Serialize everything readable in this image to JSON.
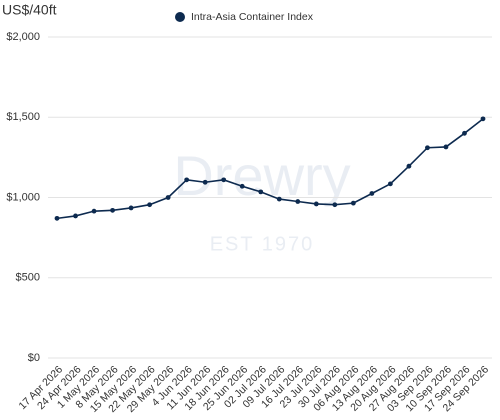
{
  "chart_data": {
    "type": "line",
    "y_axis_title": "US$/40ft",
    "watermark": "Drewry",
    "watermark_subtitle": "EST 1970",
    "categories": [
      "17 Apr 2026",
      "24 Apr 2026",
      "1 May 2026",
      "8 May 2026",
      "15 May 2026",
      "22 May 2026",
      "29 May 2026",
      "4 Jun 2026",
      "11 Jun 2026",
      "18 Jun 2026",
      "25 Jun 2026",
      "02 Jul 2026",
      "09 Jul 2026",
      "16 Jul 2026",
      "23 Jul 2026",
      "30 Jul 2026",
      "06 Aug 2026",
      "13 Aug 2026",
      "20 Aug 2026",
      "27 Aug 2026",
      "03 Sep 2026",
      "10 Sep 2026",
      "17 Sep 2026",
      "24 Sep 2026"
    ],
    "series": [
      {
        "name": "Intra-Asia Container Index",
        "color": "#0d2a4f",
        "values": [
          870,
          885,
          915,
          920,
          935,
          955,
          1000,
          1110,
          1095,
          1110,
          1070,
          1035,
          990,
          975,
          960,
          955,
          965,
          1025,
          1085,
          1195,
          1310,
          1315,
          1400,
          1490
        ]
      }
    ],
    "ylim": [
      0,
      2000
    ],
    "yticks": [
      {
        "value": 0,
        "label": "$0"
      },
      {
        "value": 500,
        "label": "$500"
      },
      {
        "value": 1000,
        "label": "$1,000"
      },
      {
        "value": 1500,
        "label": "$1,500"
      },
      {
        "value": 2000,
        "label": "$2,000"
      }
    ],
    "grid": true,
    "legend": "top"
  }
}
